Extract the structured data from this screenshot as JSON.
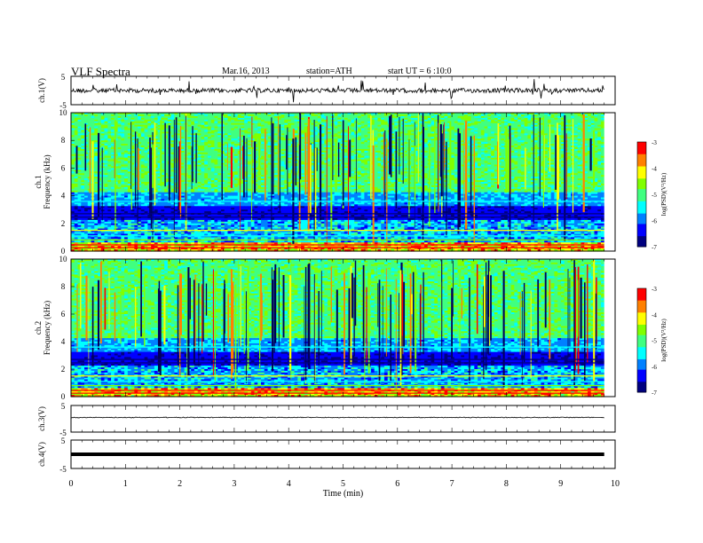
{
  "header": {
    "title": "VLF  Spectra",
    "date": "Mar.16, 2013",
    "station": "station=ATH",
    "start": "start  UT  =   6  :10:0"
  },
  "chart_data": [
    {
      "type": "line",
      "panel": "ch1",
      "ylabel": "ch.1(V)",
      "ylim": [
        -5,
        5
      ],
      "yticks": [
        "5",
        "-5"
      ],
      "xlim": [
        0,
        10
      ],
      "xlabel": "",
      "series": [
        {
          "x": [
            0,
            9.8
          ],
          "y": [
            0,
            0
          ]
        }
      ]
    },
    {
      "type": "heatmap",
      "panel": "ch1-spectrogram",
      "ylabel": [
        "ch.1",
        "Frequency  (kHz)"
      ],
      "yticks": [
        "0",
        "2",
        "4",
        "6",
        "8",
        "10"
      ],
      "ylim": [
        0,
        10
      ],
      "xlim": [
        0,
        10
      ],
      "data_extent_x": [
        0,
        9.8
      ],
      "colorbar": {
        "label": "log(PSD)(V²/Hz)",
        "ticks": [
          "-3",
          "-4",
          "-5",
          "-6",
          "-7"
        ],
        "range": [
          -7,
          -3
        ]
      }
    },
    {
      "type": "heatmap",
      "panel": "ch2-spectrogram",
      "ylabel": [
        "ch.2",
        "Frequency  (kHz)"
      ],
      "yticks": [
        "0",
        "2",
        "4",
        "6",
        "8",
        "10"
      ],
      "ylim": [
        0,
        10
      ],
      "xlim": [
        0,
        10
      ],
      "data_extent_x": [
        0,
        9.8
      ],
      "colorbar": {
        "label": "log(PSD)(V²/Hz)",
        "ticks": [
          "-3",
          "-4",
          "-5",
          "-6",
          "-7"
        ],
        "range": [
          -7,
          -3
        ]
      }
    },
    {
      "type": "line",
      "panel": "ch3",
      "ylabel": "ch.3(V)",
      "ylim": [
        -5,
        5
      ],
      "yticks": [
        "5",
        "-5"
      ],
      "xlim": [
        0,
        10
      ],
      "series": [
        {
          "x": [
            0,
            9.8
          ],
          "y": [
            0.5,
            0.5
          ]
        }
      ]
    },
    {
      "type": "line",
      "panel": "ch4",
      "ylabel": "ch.4(V)",
      "ylim": [
        -5,
        5
      ],
      "yticks": [
        "5",
        "-5"
      ],
      "xlim": [
        0,
        10
      ],
      "xlabel": "Time  (min)",
      "xticks": [
        "0",
        "1",
        "2",
        "3",
        "4",
        "5",
        "6",
        "7",
        "8",
        "9",
        "10"
      ],
      "series": [
        {
          "x": [
            0,
            9.8
          ],
          "y": [
            0,
            0
          ]
        }
      ]
    }
  ],
  "colors": {
    "colormap": [
      "#00007f",
      "#0000ff",
      "#0080ff",
      "#00ffff",
      "#40ff80",
      "#80ff00",
      "#ffff00",
      "#ff8000",
      "#ff0000",
      "#ffffff"
    ]
  }
}
